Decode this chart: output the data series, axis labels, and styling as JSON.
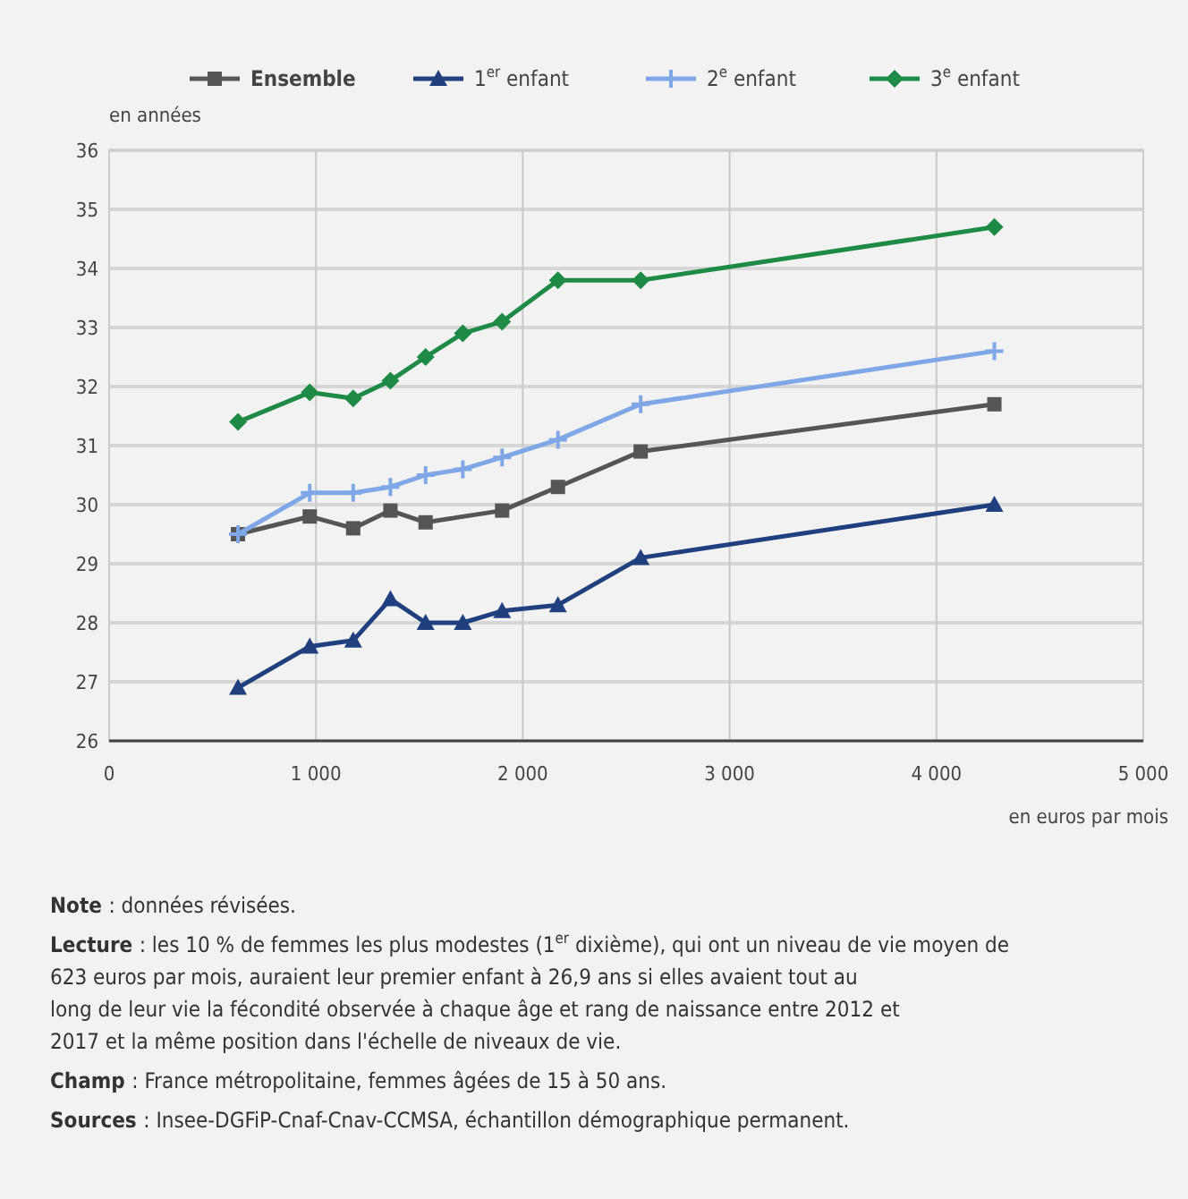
{
  "chart_data": {
    "type": "line",
    "ylabel": "en années",
    "xlabel": "en euros par mois",
    "xlim": [
      0,
      5000
    ],
    "xticks": [
      0,
      {
        "value": 1000,
        "label": "1 000"
      },
      {
        "value": 2000,
        "label": "2 000"
      },
      {
        "value": 3000,
        "label": "3 000"
      },
      {
        "value": 4000,
        "label": "4 000"
      },
      {
        "value": 5000,
        "label": "5 000"
      }
    ],
    "ylim": [
      26,
      36
    ],
    "yticks": [
      26,
      27,
      28,
      29,
      30,
      31,
      32,
      33,
      34,
      35,
      36
    ],
    "grid": true,
    "legend": "top",
    "line_style": "solid",
    "series": [
      {
        "name": "Ensemble",
        "color": "#555555",
        "marker": "square",
        "x": [
          623,
          970,
          1180,
          1360,
          1530,
          1900,
          2170,
          2570,
          4280
        ],
        "values": [
          29.5,
          29.8,
          29.6,
          29.9,
          29.7,
          29.9,
          30.3,
          30.9,
          31.7
        ]
      },
      {
        "name": "1$^{er}$ enfant",
        "color": "#1f3f7f",
        "marker": "triangle",
        "x": [
          623,
          970,
          1180,
          1360,
          1530,
          1710,
          1900,
          2170,
          2570,
          4280
        ],
        "values": [
          26.9,
          27.6,
          27.7,
          28.4,
          28.0,
          28.0,
          28.2,
          28.3,
          29.1,
          30.0
        ]
      },
      {
        "name": "2$^{e}$ enfant",
        "color": "#7fa6e6",
        "marker": "cross",
        "x": [
          623,
          970,
          1180,
          1360,
          1530,
          1710,
          1900,
          2170,
          2570,
          4280
        ],
        "values": [
          29.5,
          30.2,
          30.2,
          30.3,
          30.5,
          30.6,
          30.8,
          31.1,
          31.7,
          32.6
        ]
      },
      {
        "name": "3$^{e}$ enfant",
        "color": "#1f8a45",
        "marker": "diamond",
        "x": [
          623,
          970,
          1180,
          1360,
          1530,
          1710,
          1900,
          2170,
          2570,
          4280
        ],
        "values": [
          31.4,
          31.9,
          31.8,
          32.1,
          32.5,
          32.9,
          33.1,
          33.8,
          33.8,
          34.7
        ]
      }
    ],
    "annotations": [
      "Note : données révisées.",
      "Lecture : les 10 % de femmes les plus modestes (1$^{er}$ dixième), qui ont un niveau de vie moyen de 623 euros par mois, auraient leur premier enfant à 26,9 ans si elles avaient tout au long de leur vie la fécondité observée à chaque âge et rang de naissance entre 2012 et 2017 et la même position dans l'échelle de niveaux de vie.",
      "Champ : France métropolitaine, femmes âgées de 15 à 50 ans.",
      "Sources : Insee-DGFiP-Cnaf-Cnav-CCMSA, échantillon démographique permanent."
    ]
  }
}
